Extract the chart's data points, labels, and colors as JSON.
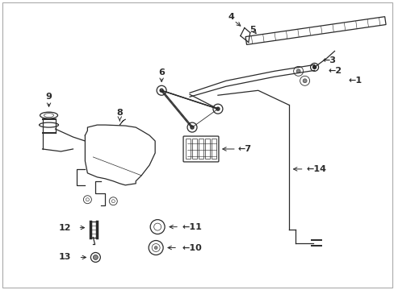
{
  "bg_color": "#ffffff",
  "line_color": "#2a2a2a",
  "label_color": "#000000",
  "fig_width": 4.89,
  "fig_height": 3.6,
  "dpi": 100,
  "border_color": "#cccccc",
  "thin_lw": 0.6,
  "med_lw": 0.9,
  "thick_lw": 1.4
}
